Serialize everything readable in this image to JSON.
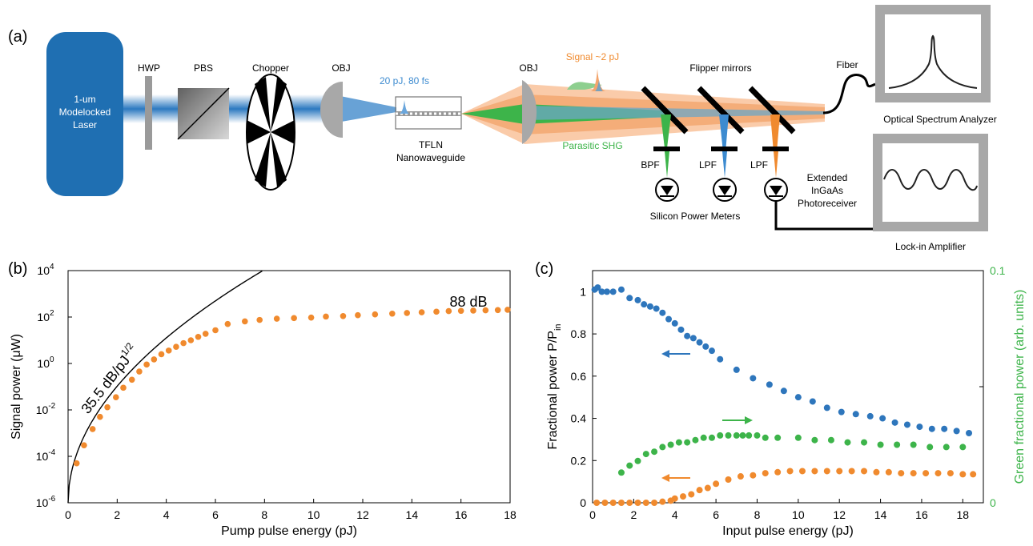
{
  "panel_a": {
    "label": "(a)",
    "laser": [
      "1-um",
      "Modelocked",
      "Laser"
    ],
    "hwp": "HWP",
    "pbs": "PBS",
    "chopper": "Chopper",
    "obj1": "OBJ",
    "obj2": "OBJ",
    "pulse_in": "20 pJ, 80 fs",
    "waveguide": [
      "TFLN",
      "Nanowaveguide"
    ],
    "signal": "Signal ~2 pJ",
    "shg": "Parasitic SHG",
    "flipper": "Flipper mirrors",
    "fiber": "Fiber",
    "osa": "Optical Spectrum Analyzer",
    "bpf": "BPF",
    "lpf1": "LPF",
    "lpf2": "LPF",
    "silicon": "Silicon Power Meters",
    "photoreceiver": [
      "Extended",
      "InGaAs",
      "Photoreceiver"
    ],
    "lockin": "Lock-in Amplifier",
    "colors": {
      "laser": "#2372b5",
      "signal": "#f08a2e",
      "shg": "#3db44a",
      "gray": "#a8a8a8"
    }
  },
  "chart_data": [
    {
      "panel": "(b)",
      "type": "scatter",
      "xlabel": "Pump pulse energy (pJ)",
      "ylabel": "Signal power (μW)",
      "xlim": [
        0,
        18
      ],
      "ylim_log10": [
        -6,
        4
      ],
      "log_y": true,
      "xticks": [
        "0",
        "2",
        "4",
        "6",
        "8",
        "10",
        "12",
        "14",
        "16",
        "18"
      ],
      "yticks": [
        {
          "base": "10",
          "exp": "-6"
        },
        {
          "base": "10",
          "exp": "-4"
        },
        {
          "base": "10",
          "exp": "-2"
        },
        {
          "base": "10",
          "exp": "0"
        },
        {
          "base": "10",
          "exp": "2"
        },
        {
          "base": "10",
          "exp": "4"
        }
      ],
      "annotations": {
        "gain": "35.5 dB/pJ",
        "gain_sup": "1/2",
        "range": "88 dB"
      },
      "series": [
        {
          "color": "#f08a2e",
          "x": [
            0.35,
            0.65,
            1.0,
            1.3,
            1.6,
            1.95,
            2.25,
            2.6,
            2.9,
            3.2,
            3.5,
            3.8,
            4.1,
            4.4,
            4.7,
            5.0,
            5.3,
            5.6,
            6.0,
            6.5,
            7.2,
            7.8,
            8.5,
            9.2,
            9.9,
            10.5,
            11.2,
            11.8,
            12.5,
            13.2,
            13.8,
            14.4,
            15.0,
            15.5,
            16.0,
            16.5,
            17.0,
            17.5,
            17.9
          ],
          "y": [
            5e-05,
            0.0003,
            0.0015,
            0.005,
            0.013,
            0.035,
            0.09,
            0.2,
            0.45,
            0.9,
            1.5,
            2.5,
            3.6,
            5.2,
            7.5,
            10,
            14,
            19,
            27,
            50,
            65,
            75,
            85,
            90,
            95,
            105,
            110,
            120,
            130,
            140,
            150,
            160,
            170,
            180,
            185,
            190,
            195,
            200,
            205
          ]
        }
      ],
      "fit": {
        "a": 35.5,
        "y0_log10": -6,
        "x_end": 9.3
      }
    },
    {
      "panel": "(c)",
      "type": "scatter",
      "xlabel": "Input pulse energy (pJ)",
      "ylabel": "Fractional power P/P",
      "ylabel_sub": "in",
      "ylabel_right": "Green fractional power (arb. units)",
      "xlim": [
        0,
        19
      ],
      "ylim": [
        0,
        1.1
      ],
      "ylim_right": [
        0,
        0.1
      ],
      "xticks": [
        "0",
        "2",
        "4",
        "6",
        "8",
        "10",
        "12",
        "14",
        "16",
        "18"
      ],
      "yticks": [
        "0",
        "0.2",
        "0.4",
        "0.6",
        "0.8",
        "1"
      ],
      "yticks_right": [
        "0",
        "0.1"
      ],
      "series": [
        {
          "color": "#2e76bc",
          "x": [
            0.1,
            0.25,
            0.45,
            0.7,
            1.0,
            1.4,
            1.8,
            2.2,
            2.5,
            2.8,
            3.1,
            3.4,
            3.7,
            4.0,
            4.3,
            4.6,
            4.9,
            5.2,
            5.5,
            5.8,
            6.2,
            7.0,
            7.8,
            8.6,
            9.3,
            10.0,
            10.7,
            11.4,
            12.1,
            12.8,
            13.5,
            14.1,
            14.7,
            15.3,
            15.9,
            16.5,
            17.1,
            17.7,
            18.3
          ],
          "y": [
            1.01,
            1.02,
            1.0,
            1.0,
            1.0,
            1.01,
            0.97,
            0.96,
            0.94,
            0.93,
            0.92,
            0.9,
            0.87,
            0.85,
            0.82,
            0.79,
            0.78,
            0.76,
            0.74,
            0.72,
            0.68,
            0.63,
            0.59,
            0.56,
            0.53,
            0.5,
            0.48,
            0.45,
            0.43,
            0.42,
            0.41,
            0.4,
            0.38,
            0.37,
            0.36,
            0.35,
            0.35,
            0.34,
            0.33
          ]
        },
        {
          "color": "#3db44a",
          "axis": "right",
          "x": [
            1.4,
            1.8,
            2.2,
            2.6,
            3.0,
            3.4,
            3.8,
            4.2,
            4.6,
            5.0,
            5.4,
            5.8,
            6.2,
            6.6,
            7.0,
            7.3,
            7.6,
            8.0,
            8.4,
            9.0,
            10.0,
            10.8,
            11.6,
            12.4,
            13.2,
            14.0,
            14.8,
            15.6,
            16.4,
            17.2,
            18.0
          ],
          "y": [
            0.013,
            0.016,
            0.018,
            0.021,
            0.022,
            0.024,
            0.025,
            0.026,
            0.026,
            0.027,
            0.028,
            0.028,
            0.029,
            0.029,
            0.029,
            0.029,
            0.029,
            0.029,
            0.028,
            0.028,
            0.028,
            0.027,
            0.027,
            0.026,
            0.026,
            0.025,
            0.025,
            0.025,
            0.024,
            0.024,
            0.024
          ]
        },
        {
          "color": "#f08a2e",
          "x": [
            0.2,
            0.6,
            1.0,
            1.4,
            1.8,
            2.2,
            2.6,
            3.0,
            3.4,
            3.8,
            4.0,
            4.4,
            4.8,
            5.2,
            5.6,
            6.0,
            6.6,
            7.2,
            7.8,
            8.4,
            9.0,
            9.6,
            10.2,
            10.8,
            11.4,
            12.0,
            12.6,
            13.2,
            13.8,
            14.4,
            15.0,
            15.6,
            16.2,
            16.8,
            17.4,
            18.0,
            18.5
          ],
          "y": [
            0,
            0,
            0,
            0,
            0,
            0,
            0,
            0,
            0.005,
            0.01,
            0.02,
            0.03,
            0.04,
            0.06,
            0.07,
            0.09,
            0.11,
            0.125,
            0.13,
            0.14,
            0.145,
            0.15,
            0.15,
            0.15,
            0.15,
            0.15,
            0.15,
            0.15,
            0.145,
            0.145,
            0.14,
            0.14,
            0.14,
            0.14,
            0.14,
            0.135,
            0.135
          ]
        }
      ]
    }
  ]
}
